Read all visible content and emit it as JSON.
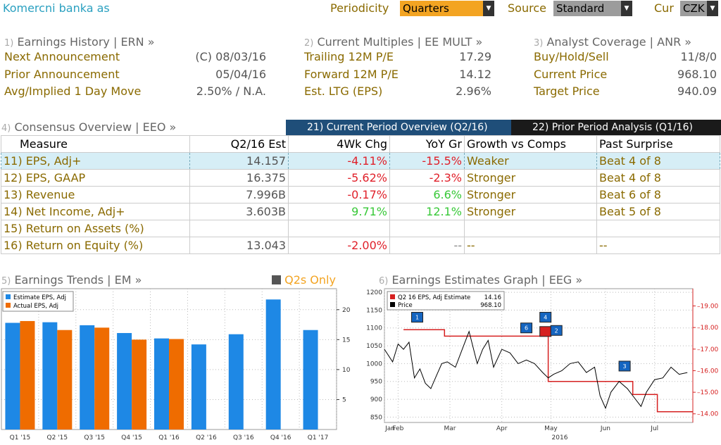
{
  "header": {
    "company": "Komercni banka as",
    "periodicity_label": "Periodicity",
    "periodicity_value": "Quarters",
    "source_label": "Source",
    "source_value": "Standard",
    "currency_label": "Cur",
    "currency_value": "CZK"
  },
  "earnings_history": {
    "num": "1)",
    "title": "Earnings History | ERN »",
    "rows": [
      {
        "label": "Next Announcement",
        "value": "(C)  08/03/16"
      },
      {
        "label": "Prior Announcement",
        "value": "05/04/16"
      },
      {
        "label": "Avg/Implied 1 Day Move",
        "value": "2.50% / N.A."
      }
    ]
  },
  "current_multiples": {
    "num": "2)",
    "title": "Current Multiples | EE MULT »",
    "rows": [
      {
        "label": "Trailing 12M P/E",
        "value": "17.29"
      },
      {
        "label": "Forward 12M P/E",
        "value": "14.12"
      },
      {
        "label": "Est. LTG (EPS)",
        "value": "2.96%"
      }
    ]
  },
  "analyst_coverage": {
    "num": "3)",
    "title": "Analyst Coverage | ANR »",
    "rows": [
      {
        "label": "Buy/Hold/Sell",
        "value": "11/8/0"
      },
      {
        "label": "Current Price",
        "value": "968.10"
      },
      {
        "label": "Target Price",
        "value": "940.09"
      }
    ]
  },
  "consensus": {
    "num": "4)",
    "title": "Consensus Overview | EEO »",
    "tab_current": "21) Current Period Overview (Q2/16)",
    "tab_prior": "22) Prior Period Analysis (Q1/16)",
    "columns": [
      "Measure",
      "Q2/16 Est",
      "4Wk Chg",
      "YoY Gr",
      "Growth vs Comps",
      "Past Surprise"
    ],
    "rows": [
      {
        "measure": "11) EPS, Adj+",
        "est": "14.157",
        "chg": "-4.11%",
        "yoy": "-15.5%",
        "comps": "Weaker",
        "surprise": "Beat 4 of 8"
      },
      {
        "measure": "12) EPS, GAAP",
        "est": "16.375",
        "chg": "-5.62%",
        "yoy": "-2.3%",
        "comps": "Stronger",
        "surprise": "Beat 4 of 8"
      },
      {
        "measure": "13) Revenue",
        "est": "7.996B",
        "chg": "-0.17%",
        "yoy": "6.6%",
        "comps": "Stronger",
        "surprise": "Beat 6 of 8"
      },
      {
        "measure": "14) Net Income, Adj+",
        "est": "3.603B",
        "chg": "9.71%",
        "yoy": "12.1%",
        "comps": "Stronger",
        "surprise": "Beat 5 of 8"
      },
      {
        "measure": "15) Return on Assets (%)",
        "est": "",
        "chg": "",
        "yoy": "",
        "comps": "",
        "surprise": ""
      },
      {
        "measure": "16) Return on Equity (%)",
        "est": "13.043",
        "chg": "-2.00%",
        "yoy": "--",
        "comps": "--",
        "surprise": "--"
      }
    ]
  },
  "trends": {
    "num": "5)",
    "title": "Earnings Trends | EM »",
    "toggle_label": "Q2s Only"
  },
  "estimates_graph": {
    "num": "6)",
    "title": "Earnings Estimates Graph | EEG »"
  },
  "chart_data": [
    {
      "type": "bar",
      "categories": [
        "Q1 '15",
        "Q2 '15",
        "Q3 '15",
        "Q4 '15",
        "Q1 '16",
        "Q2 '16",
        "Q3 '16",
        "Q4 '16",
        "Q1 '17"
      ],
      "series": [
        {
          "name": "Estimate EPS, Adj",
          "color": "#1e88e5",
          "values": [
            17.8,
            17.9,
            17.4,
            16.1,
            15.2,
            14.2,
            15.9,
            21.7,
            16.6
          ]
        },
        {
          "name": "Actual EPS, Adj",
          "color": "#ef6c00",
          "values": [
            18.1,
            16.6,
            17.0,
            15.0,
            15.1,
            null,
            null,
            null,
            null
          ]
        }
      ],
      "yticks": [
        5,
        10,
        15,
        20
      ],
      "ylim": [
        0,
        23.5
      ]
    },
    {
      "type": "line",
      "xlabel_year": "2016",
      "x_ticks": [
        "Jan",
        "Feb",
        "Mar",
        "Apr",
        "May",
        "Jun",
        "Jul"
      ],
      "x_ticks_pos": [
        0,
        0.5,
        2.4,
        4.3,
        6.1,
        8.1,
        9.9
      ],
      "xlim": [
        0,
        11.3
      ],
      "left_axis": {
        "ylim": [
          835,
          1210
        ],
        "ticks": [
          850,
          900,
          950,
          1000,
          1050,
          1100,
          1150,
          1200
        ]
      },
      "right_axis": {
        "ylim": [
          13.6,
          19.8
        ],
        "ticks": [
          "14.00",
          "15.00",
          "16.00",
          "17.00",
          "18.00",
          "19.00"
        ]
      },
      "series": [
        {
          "name": "Q2 16 EPS, Adj Estimate",
          "last": "14.16",
          "color": "#d62020",
          "axis": "right",
          "x": [
            0.7,
            2.2,
            2.2,
            6.0,
            6.0,
            9.1,
            9.1,
            10.0,
            10.0,
            11.3
          ],
          "y": [
            17.9,
            17.9,
            17.6,
            17.6,
            15.5,
            15.5,
            14.9,
            14.9,
            14.1,
            14.1
          ]
        },
        {
          "name": "Price",
          "last": "968.10",
          "color": "#000000",
          "axis": "left",
          "x": [
            0,
            0.3,
            0.5,
            0.7,
            0.9,
            1.1,
            1.3,
            1.5,
            1.7,
            1.9,
            2.1,
            2.3,
            2.6,
            2.9,
            3.1,
            3.4,
            3.6,
            3.8,
            4.0,
            4.3,
            4.6,
            4.9,
            5.2,
            5.5,
            5.8,
            6.0,
            6.2,
            6.5,
            6.8,
            7.1,
            7.4,
            7.7,
            7.9,
            8.1,
            8.3,
            8.6,
            8.9,
            9.1,
            9.4,
            9.6,
            9.9,
            10.2,
            10.5,
            10.8,
            11.1
          ],
          "y": [
            1040,
            1005,
            1055,
            1040,
            1060,
            960,
            985,
            945,
            930,
            965,
            1000,
            1005,
            990,
            1050,
            1090,
            1000,
            1040,
            1065,
            990,
            1040,
            1030,
            1000,
            1010,
            1000,
            975,
            960,
            970,
            980,
            1000,
            1005,
            975,
            990,
            910,
            875,
            920,
            950,
            930,
            910,
            880,
            920,
            955,
            960,
            990,
            970,
            975
          ]
        }
      ],
      "markers": [
        {
          "x": 1.2,
          "y": 1130,
          "label": "1",
          "color": "#1565c0"
        },
        {
          "x": 5.2,
          "y": 1100,
          "label": "6",
          "color": "#1565c0"
        },
        {
          "x": 5.9,
          "y": 1130,
          "label": "4",
          "color": "#1565c0"
        },
        {
          "x": 5.9,
          "y": 1090,
          "label": "",
          "color": "#d62020"
        },
        {
          "x": 6.3,
          "y": 1093,
          "label": "2",
          "color": "#1565c0"
        },
        {
          "x": 8.8,
          "y": 993,
          "label": "3",
          "color": "#1565c0"
        }
      ]
    }
  ]
}
